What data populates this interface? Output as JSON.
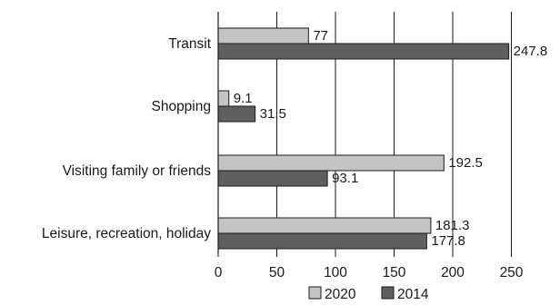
{
  "chart_data": {
    "type": "bar",
    "orientation": "horizontal",
    "title": "",
    "xlabel": "",
    "ylabel": "",
    "xlim": [
      0,
      250
    ],
    "xticks": [
      0,
      50,
      100,
      150,
      200,
      250
    ],
    "grid": "vertical",
    "legend_position": "bottom",
    "categories": [
      "Transit",
      "Shopping",
      "Visiting family or friends",
      "Leisure, recreation, holiday"
    ],
    "series": [
      {
        "name": "2020",
        "color": "#c4c4c4",
        "values": [
          77,
          9.1,
          192.5,
          181.3
        ],
        "labels": [
          "77",
          "9.1",
          "192.5",
          "181.3"
        ]
      },
      {
        "name": "2014",
        "color": "#5f5f5f",
        "values": [
          247.8,
          31.5,
          93.1,
          177.8
        ],
        "labels": [
          "247.8",
          "31.5",
          "93.1",
          "177.8"
        ]
      }
    ]
  }
}
